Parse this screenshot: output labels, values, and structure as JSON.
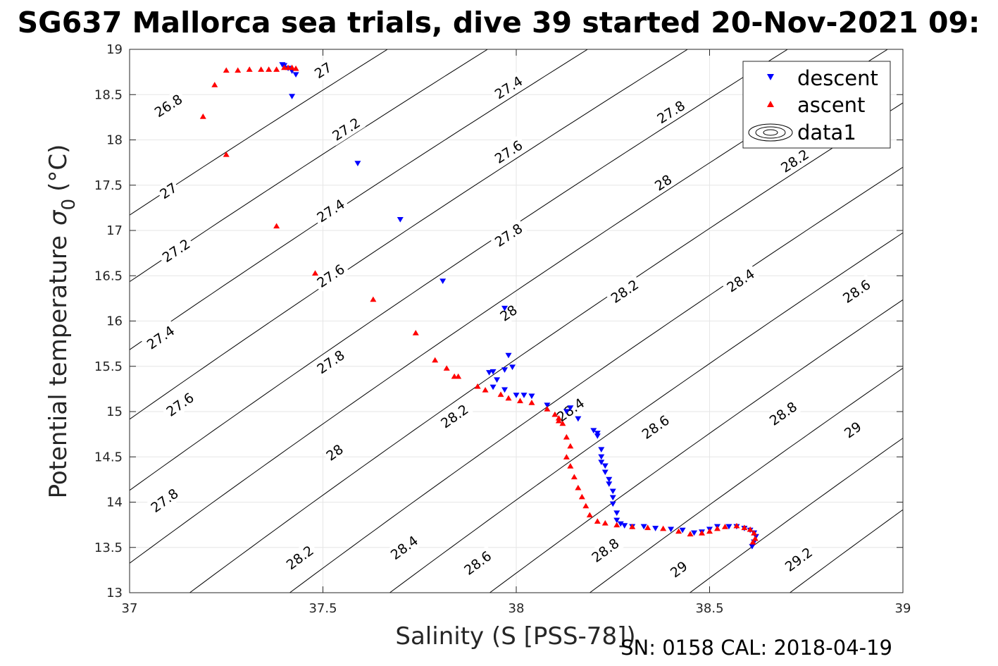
{
  "chart_data": {
    "type": "scatter",
    "title": "SG637 Mallorca sea trials, dive 39 started 20-Nov-2021 09:",
    "xlabel": "Salinity (S [PSS-78])",
    "ylabel": "Potential temperature",
    "ylabel_symbol": "σ",
    "ylabel_subscript": "0",
    "ylabel_unit": "(°C)",
    "footer": "SN: 0158  CAL: 2018-04-19",
    "xlim": [
      37,
      39
    ],
    "ylim": [
      13,
      19
    ],
    "xticks": [
      37,
      37.5,
      38,
      38.5,
      39
    ],
    "xtick_labels": [
      "37",
      "37.5",
      "38",
      "38.5",
      "39"
    ],
    "yticks": [
      13,
      13.5,
      14,
      14.5,
      15,
      15.5,
      16,
      16.5,
      17,
      17.5,
      18,
      18.5,
      19
    ],
    "ytick_labels": [
      "13",
      "13.5",
      "14",
      "14.5",
      "15",
      "15.5",
      "16",
      "16.5",
      "17",
      "17.5",
      "18",
      "18.5",
      "19"
    ],
    "grid": true,
    "legend_position": "top-right",
    "legend": [
      {
        "name": "descent",
        "marker": "triangle-down",
        "color": "#0000ff"
      },
      {
        "name": "ascent",
        "marker": "triangle-up",
        "color": "#ff0000"
      },
      {
        "name": "data1",
        "marker": "contour",
        "color": "#000000"
      }
    ],
    "contours": {
      "levels": [
        26.8,
        27,
        27.2,
        27.4,
        27.6,
        27.8,
        28,
        28.2,
        28.4,
        28.6,
        28.8,
        29,
        29.2
      ],
      "level_labels": [
        "26.8",
        "27",
        "27.2",
        "27.4",
        "27.6",
        "27.8",
        "28",
        "28.2",
        "28.4",
        "28.6",
        "28.8",
        "29",
        "29.2"
      ],
      "labels": [
        {
          "text": "26.8",
          "s": 37.1,
          "t": 18.38
        },
        {
          "text": "27",
          "s": 37.5,
          "t": 18.77
        },
        {
          "text": "27",
          "s": 37.1,
          "t": 17.44
        },
        {
          "text": "27.2",
          "s": 37.56,
          "t": 18.12
        },
        {
          "text": "27.2",
          "s": 37.12,
          "t": 16.78
        },
        {
          "text": "27.4",
          "s": 37.98,
          "t": 18.58
        },
        {
          "text": "27.4",
          "s": 37.52,
          "t": 17.22
        },
        {
          "text": "27.4",
          "s": 37.08,
          "t": 15.82
        },
        {
          "text": "27.6",
          "s": 37.98,
          "t": 17.87
        },
        {
          "text": "27.6",
          "s": 37.52,
          "t": 16.5
        },
        {
          "text": "27.6",
          "s": 37.13,
          "t": 15.08
        },
        {
          "text": "27.8",
          "s": 38.4,
          "t": 18.31
        },
        {
          "text": "27.8",
          "s": 37.98,
          "t": 16.95
        },
        {
          "text": "27.8",
          "s": 37.52,
          "t": 15.55
        },
        {
          "text": "27.8",
          "s": 37.09,
          "t": 14.02
        },
        {
          "text": "28",
          "s": 38.38,
          "t": 17.53
        },
        {
          "text": "28",
          "s": 37.98,
          "t": 16.09
        },
        {
          "text": "28",
          "s": 37.53,
          "t": 14.55
        },
        {
          "text": "28.2",
          "s": 38.72,
          "t": 17.77
        },
        {
          "text": "28.2",
          "s": 38.28,
          "t": 16.33
        },
        {
          "text": "28.2",
          "s": 37.84,
          "t": 14.95
        },
        {
          "text": "28.2",
          "s": 37.44,
          "t": 13.39
        },
        {
          "text": "28.4",
          "s": 38.58,
          "t": 16.45
        },
        {
          "text": "28.4",
          "s": 38.14,
          "t": 15.02
        },
        {
          "text": "28.4",
          "s": 37.71,
          "t": 13.5
        },
        {
          "text": "28.6",
          "s": 38.88,
          "t": 16.33
        },
        {
          "text": "28.6",
          "s": 38.36,
          "t": 14.83
        },
        {
          "text": "28.6",
          "s": 37.9,
          "t": 13.33
        },
        {
          "text": "28.8",
          "s": 38.69,
          "t": 14.98
        },
        {
          "text": "28.8",
          "s": 38.23,
          "t": 13.47
        },
        {
          "text": "29",
          "s": 38.87,
          "t": 14.8
        },
        {
          "text": "29",
          "s": 38.42,
          "t": 13.26
        },
        {
          "text": "29.2",
          "s": 38.73,
          "t": 13.37
        }
      ]
    },
    "series": [
      {
        "name": "descent",
        "color": "#0000ff",
        "marker": "triangle-down",
        "points": [
          [
            37.395,
            18.83
          ],
          [
            37.4,
            18.82
          ],
          [
            37.41,
            18.79
          ],
          [
            37.42,
            18.76
          ],
          [
            37.43,
            18.72
          ],
          [
            37.42,
            18.48
          ],
          [
            37.59,
            17.74
          ],
          [
            37.7,
            17.12
          ],
          [
            37.81,
            16.44
          ],
          [
            37.97,
            16.14
          ],
          [
            37.98,
            15.62
          ],
          [
            37.97,
            15.46
          ],
          [
            37.94,
            15.44
          ],
          [
            37.93,
            15.43
          ],
          [
            37.95,
            15.35
          ],
          [
            37.99,
            15.49
          ],
          [
            37.94,
            15.27
          ],
          [
            37.97,
            15.24
          ],
          [
            38.0,
            15.18
          ],
          [
            38.02,
            15.18
          ],
          [
            38.04,
            15.17
          ],
          [
            38.08,
            15.07
          ],
          [
            38.13,
            15.0
          ],
          [
            38.14,
            15.04
          ],
          [
            38.16,
            14.92
          ],
          [
            38.2,
            14.79
          ],
          [
            38.21,
            14.76
          ],
          [
            38.21,
            14.73
          ],
          [
            38.22,
            14.5
          ],
          [
            38.22,
            14.44
          ],
          [
            38.22,
            14.58
          ],
          [
            38.23,
            14.4
          ],
          [
            38.23,
            14.33
          ],
          [
            38.24,
            14.25
          ],
          [
            38.24,
            14.2
          ],
          [
            38.25,
            14.12
          ],
          [
            38.25,
            14.05
          ],
          [
            38.25,
            13.98
          ],
          [
            38.26,
            13.88
          ],
          [
            38.26,
            13.8
          ],
          [
            38.27,
            13.76
          ],
          [
            38.28,
            13.74
          ],
          [
            38.3,
            13.73
          ],
          [
            38.33,
            13.73
          ],
          [
            38.36,
            13.71
          ],
          [
            38.4,
            13.7
          ],
          [
            38.43,
            13.69
          ],
          [
            38.46,
            13.66
          ],
          [
            38.48,
            13.67
          ],
          [
            38.5,
            13.7
          ],
          [
            38.52,
            13.73
          ],
          [
            38.55,
            13.73
          ],
          [
            38.57,
            13.73
          ],
          [
            38.59,
            13.71
          ],
          [
            38.605,
            13.69
          ],
          [
            38.615,
            13.66
          ],
          [
            38.62,
            13.62
          ],
          [
            38.615,
            13.56
          ],
          [
            38.61,
            13.51
          ]
        ]
      },
      {
        "name": "ascent",
        "color": "#ff0000",
        "marker": "triangle-up",
        "points": [
          [
            37.43,
            18.79
          ],
          [
            37.42,
            18.8
          ],
          [
            37.41,
            18.8
          ],
          [
            37.4,
            18.8
          ],
          [
            37.38,
            18.78
          ],
          [
            37.36,
            18.78
          ],
          [
            37.34,
            18.78
          ],
          [
            37.31,
            18.78
          ],
          [
            37.28,
            18.77
          ],
          [
            37.25,
            18.77
          ],
          [
            37.22,
            18.61
          ],
          [
            37.19,
            18.26
          ],
          [
            37.25,
            17.84
          ],
          [
            37.38,
            17.05
          ],
          [
            37.48,
            16.53
          ],
          [
            37.63,
            16.24
          ],
          [
            37.74,
            15.87
          ],
          [
            37.79,
            15.57
          ],
          [
            37.82,
            15.48
          ],
          [
            37.84,
            15.39
          ],
          [
            37.85,
            15.39
          ],
          [
            37.9,
            15.28
          ],
          [
            37.92,
            15.24
          ],
          [
            37.96,
            15.19
          ],
          [
            37.98,
            15.15
          ],
          [
            38.01,
            15.12
          ],
          [
            38.04,
            15.1
          ],
          [
            38.08,
            15.03
          ],
          [
            38.1,
            14.97
          ],
          [
            38.11,
            14.93
          ],
          [
            38.11,
            14.9
          ],
          [
            38.12,
            14.87
          ],
          [
            38.13,
            14.72
          ],
          [
            38.14,
            14.62
          ],
          [
            38.13,
            14.5
          ],
          [
            38.14,
            14.4
          ],
          [
            38.15,
            14.28
          ],
          [
            38.16,
            14.16
          ],
          [
            38.17,
            14.06
          ],
          [
            38.18,
            13.96
          ],
          [
            38.19,
            13.86
          ],
          [
            38.21,
            13.79
          ],
          [
            38.23,
            13.77
          ],
          [
            38.26,
            13.75
          ],
          [
            38.3,
            13.73
          ],
          [
            38.34,
            13.72
          ],
          [
            38.38,
            13.71
          ],
          [
            38.42,
            13.68
          ],
          [
            38.45,
            13.65
          ],
          [
            38.48,
            13.66
          ],
          [
            38.5,
            13.68
          ],
          [
            38.52,
            13.71
          ],
          [
            38.54,
            13.73
          ],
          [
            38.57,
            13.74
          ],
          [
            38.59,
            13.72
          ],
          [
            38.605,
            13.7
          ],
          [
            38.615,
            13.66
          ],
          [
            38.618,
            13.6
          ],
          [
            38.612,
            13.56
          ]
        ]
      }
    ]
  }
}
